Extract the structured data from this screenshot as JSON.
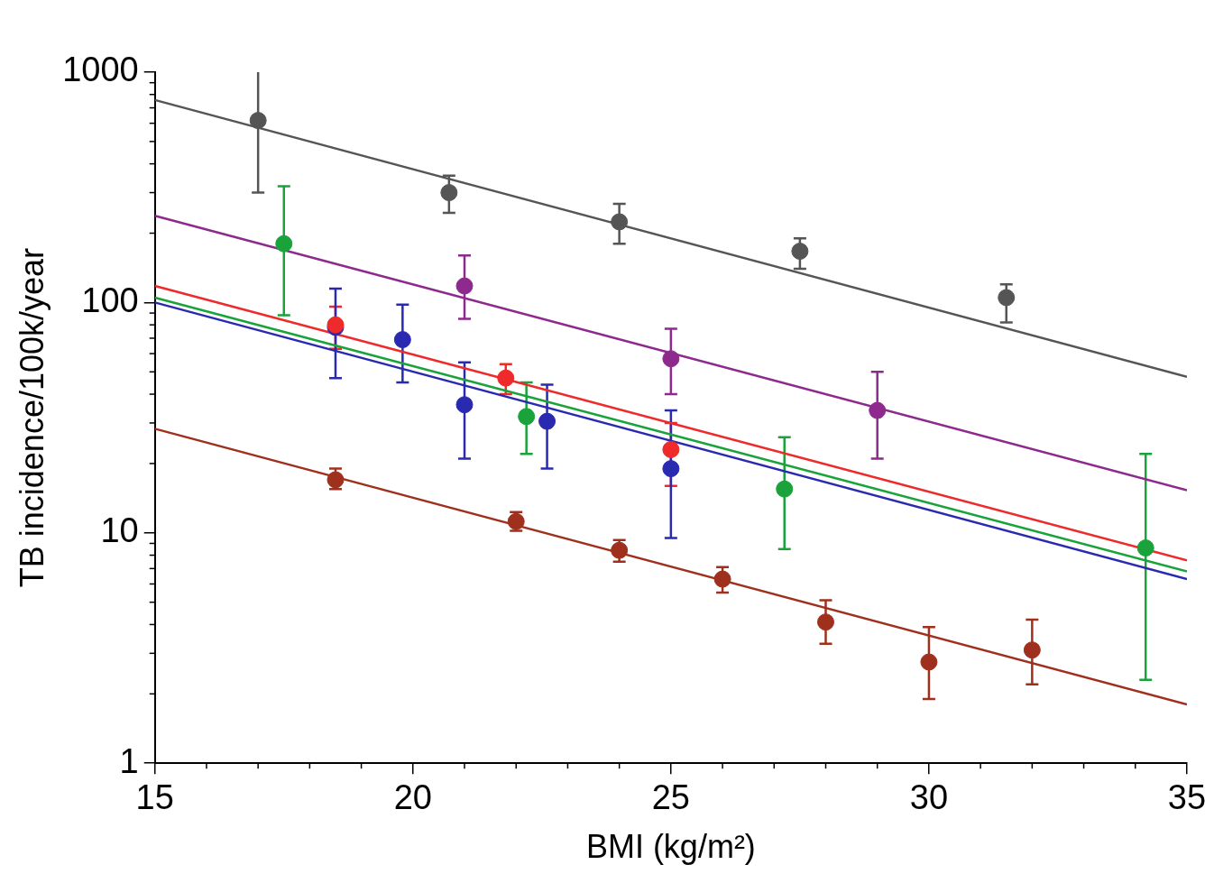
{
  "chart_data": {
    "type": "scatter",
    "x_label": "BMI (kg/m²)",
    "y_label": "TB incidence/100k/year",
    "log": "y",
    "grid": false,
    "marker": "circle",
    "line_style": "solid",
    "xlim": [
      15,
      35
    ],
    "xticks": [
      15,
      20,
      25,
      30,
      35
    ],
    "ylim": [
      1,
      1000
    ],
    "yticks": [
      1,
      10,
      100,
      1000
    ],
    "series": [
      {
        "color": "#555555",
        "x": [
          17,
          20.7,
          24,
          27.5,
          31.5
        ],
        "values": [
          617,
          300,
          224,
          167,
          105
        ],
        "error_low": [
          300,
          245,
          180,
          140,
          82
        ],
        "error_high": [
          1070,
          355,
          268,
          190,
          120
        ],
        "fit": {
          "x": [
            15,
            35
          ],
          "values": [
            757,
            47.6
          ]
        }
      },
      {
        "color": "#8e2a8e",
        "x": [
          21,
          25,
          29
        ],
        "values": [
          118,
          57,
          34
        ],
        "error_low": [
          85,
          40,
          21
        ],
        "error_high": [
          160,
          77,
          50
        ],
        "fit": {
          "x": [
            15,
            35
          ],
          "values": [
            238,
            15.3
          ]
        }
      },
      {
        "color": "#ee2a2a",
        "x": [
          18.5,
          21.8,
          25
        ],
        "values": [
          80,
          47,
          23
        ],
        "error_low": [
          63,
          40,
          16
        ],
        "error_high": [
          96,
          54,
          30
        ],
        "fit": {
          "x": [
            15,
            35
          ],
          "values": [
            118,
            7.6
          ]
        }
      },
      {
        "color": "#19a33a",
        "x": [
          17.5,
          22.2,
          27.2,
          34.2
        ],
        "values": [
          180,
          32,
          15.5,
          8.6
        ],
        "error_low": [
          88,
          22,
          8.5,
          2.3
        ],
        "error_high": [
          320,
          45,
          26,
          22
        ],
        "fit": {
          "x": [
            15,
            35
          ],
          "values": [
            105,
            6.8
          ]
        }
      },
      {
        "color": "#2a2ab0",
        "x": [
          18.5,
          19.8,
          21,
          22.6,
          25
        ],
        "values": [
          78,
          69,
          36,
          30.5,
          19
        ],
        "error_low": [
          47,
          45,
          21,
          19,
          9.5
        ],
        "error_high": [
          115,
          98,
          55,
          44,
          34
        ],
        "fit": {
          "x": [
            15,
            35
          ],
          "values": [
            100,
            6.3
          ]
        }
      },
      {
        "color": "#a0301e",
        "x": [
          18.5,
          22,
          24,
          26,
          28,
          30,
          32
        ],
        "values": [
          17,
          11.2,
          8.4,
          6.3,
          4.1,
          2.75,
          3.1
        ],
        "error_low": [
          15.5,
          10.2,
          7.5,
          5.5,
          3.3,
          1.9,
          2.2
        ],
        "error_high": [
          19,
          12.3,
          9.3,
          7.1,
          5.1,
          3.9,
          4.2
        ],
        "fit": {
          "x": [
            15,
            35
          ],
          "values": [
            28.3,
            1.8
          ]
        }
      }
    ]
  }
}
